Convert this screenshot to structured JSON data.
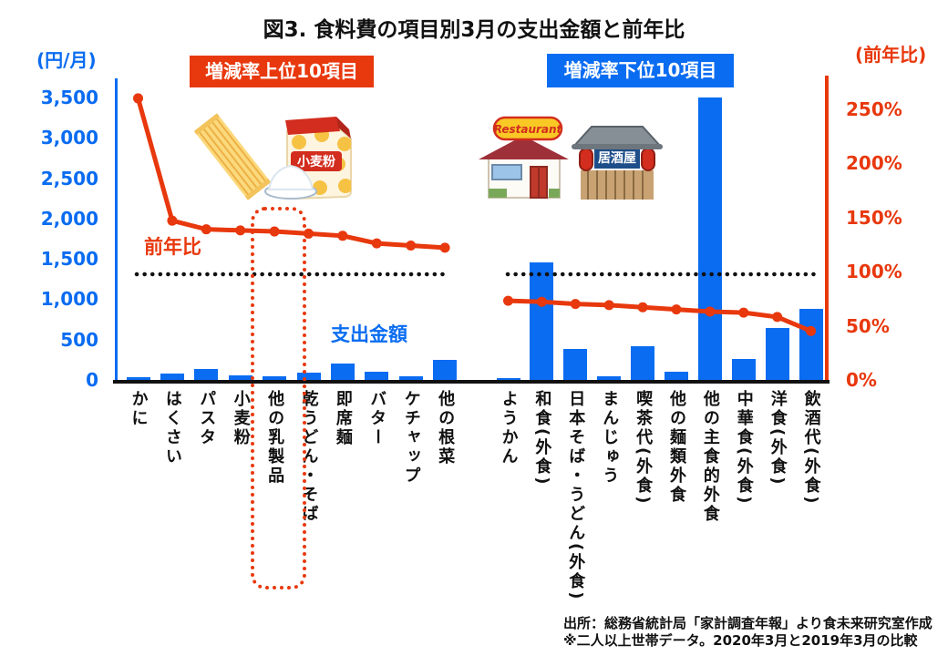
{
  "title": "図3. 食料費の項目別3月の支出金額と前年比",
  "badges": {
    "top10": "増減率上位10項目",
    "bottom10": "増減率下位10項目"
  },
  "left_axis": {
    "unit": "(円/月)",
    "tick_values": [
      3500,
      3000,
      2500,
      2000,
      1500,
      1000,
      500,
      0
    ],
    "tick_labels": [
      "3,500",
      "3,000",
      "2,500",
      "2,000",
      "1,500",
      "1,000",
      "500",
      "0"
    ]
  },
  "right_axis": {
    "unit": "(前年比)",
    "tick_values": [
      250,
      200,
      150,
      100,
      50,
      0
    ],
    "tick_labels": [
      "250%",
      "200%",
      "150%",
      "100%",
      "50%",
      "0%"
    ]
  },
  "series_labels": {
    "yoy": "前年比",
    "spending": "支出金額"
  },
  "colors": {
    "bar_blue": "#0a6cf1",
    "line_red": "#e8380d",
    "reference_black": "#111111"
  },
  "icons": {
    "pasta": "pasta-noodles-illustration",
    "flour_label": "小麦粉",
    "restaurant_sign": "Restaurant",
    "izakaya_sign": "居酒屋"
  },
  "chart_data": {
    "type": "bar",
    "subtype": "dual-axis combo: blue bars = monthly spending (yen/month, left axis), red line = year-over-year ratio (%, right axis)",
    "left_axis_range": [
      0,
      3500
    ],
    "right_axis_range_pct": [
      0,
      250
    ],
    "reference_line_pct": 100,
    "highlighted_category": "他の乳製品",
    "groups": [
      {
        "name": "増減率上位10項目",
        "categories": [
          "かに",
          "はくさい",
          "パスタ",
          "小麦粉",
          "他の乳製品",
          "乾うどん・そば",
          "即席麺",
          "バター",
          "ケチャップ",
          "他の根菜"
        ],
        "spending_yen_per_month": [
          50,
          90,
          150,
          70,
          60,
          100,
          215,
          110,
          55,
          260
        ],
        "yoy_pct": [
          261,
          148,
          140,
          139,
          138,
          136,
          134,
          127,
          125,
          123
        ]
      },
      {
        "name": "増減率下位10項目",
        "categories": [
          "ようかん",
          "和食(外食)",
          "日本そば・うどん(外食)",
          "まんじゅう",
          "喫茶代(外食)",
          "他の麺類外食",
          "他の主食的外食",
          "中華食(外食)",
          "洋食(外食)",
          "飲酒代(外食)"
        ],
        "spending_yen_per_month": [
          30,
          1465,
          390,
          60,
          430,
          110,
          3510,
          275,
          650,
          890
        ],
        "yoy_pct": [
          74,
          73,
          71,
          70,
          68,
          66,
          64,
          63,
          59,
          46
        ]
      }
    ]
  },
  "footer": {
    "line1": "出所：総務省統計局「家計調査年報」より食未来研究室作成",
    "line2": "※二人以上世帯データ。2020年3月と2019年3月の比較"
  }
}
